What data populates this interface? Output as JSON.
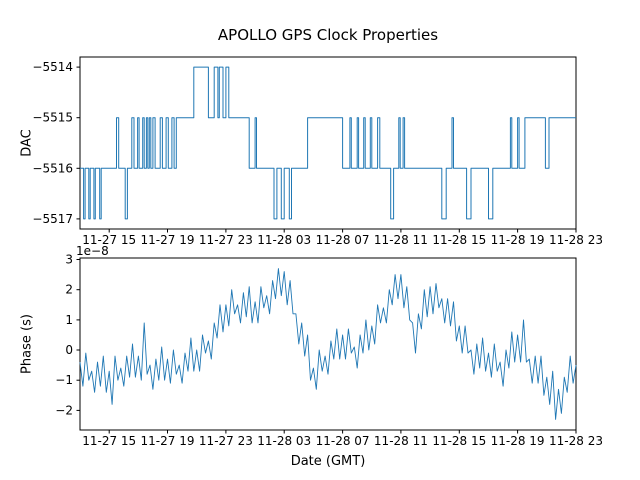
{
  "figure": {
    "background": "#ffffff",
    "line_color": "#1f77b4",
    "spine_color": "#000000"
  },
  "chart_data": [
    {
      "type": "line",
      "name_hint": "dac-step-plot",
      "title": "APOLLO GPS Clock Properties",
      "ylabel": "DAC",
      "xlabel": "",
      "draw": "steps-post",
      "xlim": [
        13,
        47
      ],
      "ylim": [
        -5517.2,
        -5513.8
      ],
      "x_ticks": [
        15,
        19,
        23,
        27,
        31,
        35,
        39,
        43,
        47
      ],
      "x_tick_labels": [
        "11-27 15",
        "11-27 19",
        "11-27 23",
        "11-28 03",
        "11-28 07",
        "11-28 11",
        "11-28 15",
        "11-28 19",
        "11-28 23"
      ],
      "y_ticks": [
        -5514,
        -5515,
        -5516,
        -5517
      ],
      "y_tick_labels": [
        "−5514",
        "−5515",
        "−5516",
        "−5517"
      ],
      "points": [
        [
          13.0,
          -5516
        ],
        [
          13.25,
          -5517
        ],
        [
          13.35,
          -5516
        ],
        [
          13.6,
          -5517
        ],
        [
          13.7,
          -5516
        ],
        [
          13.95,
          -5517
        ],
        [
          14.05,
          -5516
        ],
        [
          14.35,
          -5517
        ],
        [
          14.45,
          -5516
        ],
        [
          15.5,
          -5515
        ],
        [
          15.65,
          -5516
        ],
        [
          16.1,
          -5517
        ],
        [
          16.25,
          -5516
        ],
        [
          16.55,
          -5515
        ],
        [
          16.7,
          -5516
        ],
        [
          16.95,
          -5515
        ],
        [
          17.05,
          -5516
        ],
        [
          17.3,
          -5515
        ],
        [
          17.4,
          -5516
        ],
        [
          17.55,
          -5515
        ],
        [
          17.65,
          -5516
        ],
        [
          17.75,
          -5515
        ],
        [
          17.85,
          -5516
        ],
        [
          18.0,
          -5515
        ],
        [
          18.15,
          -5516
        ],
        [
          18.5,
          -5515
        ],
        [
          18.65,
          -5516
        ],
        [
          18.9,
          -5515
        ],
        [
          19.05,
          -5516
        ],
        [
          19.3,
          -5515
        ],
        [
          19.45,
          -5516
        ],
        [
          19.6,
          -5515
        ],
        [
          20.8,
          -5514
        ],
        [
          21.8,
          -5515
        ],
        [
          22.2,
          -5514
        ],
        [
          22.45,
          -5515
        ],
        [
          22.55,
          -5514
        ],
        [
          22.8,
          -5515
        ],
        [
          23.0,
          -5514
        ],
        [
          23.2,
          -5515
        ],
        [
          24.6,
          -5516
        ],
        [
          25.0,
          -5515
        ],
        [
          25.1,
          -5516
        ],
        [
          26.3,
          -5517
        ],
        [
          26.5,
          -5516
        ],
        [
          26.8,
          -5517
        ],
        [
          27.0,
          -5516
        ],
        [
          27.35,
          -5517
        ],
        [
          27.5,
          -5516
        ],
        [
          28.6,
          -5515
        ],
        [
          31.0,
          -5516
        ],
        [
          31.5,
          -5515
        ],
        [
          31.6,
          -5516
        ],
        [
          32.0,
          -5515
        ],
        [
          32.1,
          -5516
        ],
        [
          32.45,
          -5515
        ],
        [
          32.55,
          -5516
        ],
        [
          32.9,
          -5515
        ],
        [
          33.0,
          -5516
        ],
        [
          33.4,
          -5515
        ],
        [
          33.55,
          -5516
        ],
        [
          34.3,
          -5517
        ],
        [
          34.5,
          -5516
        ],
        [
          34.85,
          -5515
        ],
        [
          34.95,
          -5516
        ],
        [
          35.15,
          -5515
        ],
        [
          35.25,
          -5516
        ],
        [
          37.8,
          -5517
        ],
        [
          38.1,
          -5516
        ],
        [
          38.5,
          -5515
        ],
        [
          38.6,
          -5516
        ],
        [
          39.5,
          -5517
        ],
        [
          39.8,
          -5516
        ],
        [
          41.0,
          -5517
        ],
        [
          41.3,
          -5516
        ],
        [
          42.5,
          -5515
        ],
        [
          42.6,
          -5516
        ],
        [
          43.0,
          -5515
        ],
        [
          43.1,
          -5516
        ],
        [
          43.5,
          -5515
        ],
        [
          44.9,
          -5516
        ],
        [
          45.15,
          -5515
        ],
        [
          47.0,
          -5515
        ]
      ]
    },
    {
      "type": "line",
      "name_hint": "phase-noise-plot",
      "title": "",
      "ylabel": "Phase (s)",
      "xlabel": "Date (GMT)",
      "offset_text": "1e−8",
      "y_unit_multiplier": 1e-08,
      "draw": "line",
      "xlim": [
        13,
        47
      ],
      "ylim": [
        -2.65,
        3.05
      ],
      "x_ticks": [
        15,
        19,
        23,
        27,
        31,
        35,
        39,
        43,
        47
      ],
      "x_tick_labels": [
        "11-27 15",
        "11-27 19",
        "11-27 23",
        "11-28 03",
        "11-28 07",
        "11-28 11",
        "11-28 15",
        "11-28 19",
        "11-28 23"
      ],
      "y_ticks": [
        3,
        2,
        1,
        0,
        -1,
        -2
      ],
      "y_tick_labels": [
        "3",
        "2",
        "1",
        "0",
        "−1",
        "−2"
      ],
      "x_start": 13,
      "x_step": 0.2,
      "values": [
        -0.4,
        -1.2,
        -0.1,
        -1.0,
        -0.7,
        -1.4,
        -0.4,
        -1.2,
        -0.2,
        -1.4,
        -0.7,
        -1.8,
        -0.2,
        -1.0,
        -0.6,
        -1.2,
        -0.2,
        -0.9,
        0.2,
        -0.9,
        -0.2,
        -1.0,
        0.9,
        -0.8,
        -0.5,
        -1.3,
        -0.3,
        -1.0,
        0.1,
        -1.0,
        -0.3,
        -1.1,
        0.0,
        -0.8,
        -0.5,
        -1.1,
        -0.1,
        -0.7,
        0.4,
        -0.7,
        0.0,
        -0.7,
        0.5,
        -0.1,
        0.3,
        -0.3,
        0.9,
        0.4,
        1.5,
        0.6,
        1.5,
        0.8,
        2.0,
        1.2,
        1.5,
        0.9,
        1.9,
        1.1,
        2.1,
        0.9,
        1.6,
        0.9,
        2.1,
        1.4,
        1.8,
        1.2,
        2.3,
        1.7,
        2.7,
        1.8,
        2.6,
        1.5,
        2.3,
        1.2,
        1.2,
        0.2,
        0.9,
        -0.2,
        0.5,
        -1.0,
        -0.6,
        -1.3,
        0.0,
        -0.7,
        -0.2,
        -0.8,
        0.3,
        -0.3,
        0.7,
        -0.3,
        0.5,
        -0.3,
        0.7,
        -0.1,
        0.1,
        -0.6,
        0.5,
        -0.1,
        1.0,
        0.0,
        0.8,
        0.2,
        1.5,
        0.9,
        1.4,
        0.9,
        2.0,
        1.5,
        2.5,
        1.7,
        2.5,
        1.4,
        2.1,
        1.0,
        0.9,
        -0.1,
        1.2,
        0.7,
        2.0,
        1.1,
        2.1,
        1.2,
        2.2,
        1.4,
        1.7,
        0.9,
        1.7,
        0.8,
        1.6,
        0.3,
        0.8,
        -0.1,
        0.8,
        -0.1,
        0.0,
        -0.8,
        0.2,
        -0.6,
        0.4,
        -0.7,
        -0.1,
        -0.9,
        0.2,
        -0.7,
        -0.4,
        -1.2,
        0.0,
        -0.6,
        0.6,
        -0.4,
        0.5,
        -0.4,
        1.0,
        -0.4,
        -0.3,
        -1.1,
        -0.2,
        -1.1,
        -0.2,
        -1.5,
        -0.9,
        -1.8,
        -0.7,
        -2.3,
        -1.3,
        -2.1,
        -0.9,
        -1.4,
        -0.2,
        -1.1,
        -0.5
      ]
    }
  ]
}
